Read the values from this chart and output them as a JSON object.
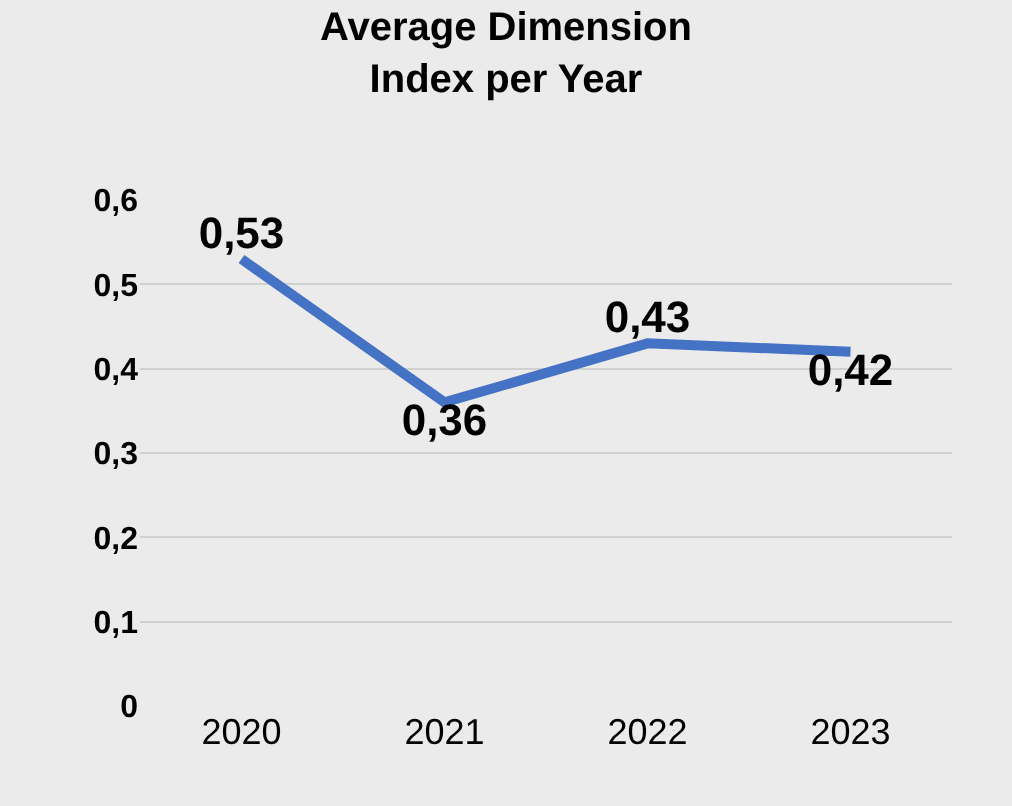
{
  "chart_data": {
    "type": "line",
    "title": "Average Dimension Index per Year",
    "categories": [
      "2020",
      "2021",
      "2022",
      "2023"
    ],
    "series": [
      {
        "color": "#4472c4",
        "values": [
          0.53,
          0.36,
          0.43,
          0.42
        ],
        "value_labels": [
          "0,53",
          "0,36",
          "0,43",
          "0,42"
        ]
      }
    ],
    "ylim": [
      0,
      0.6
    ],
    "yticks": [
      0,
      {
        "value": 0.1,
        "label": "0,1"
      },
      {
        "value": 0.2,
        "label": "0,2"
      },
      {
        "value": 0.3,
        "label": "0,3"
      },
      {
        "value": 0.4,
        "label": "0,4"
      },
      {
        "value": 0.5,
        "label": "0,5"
      },
      {
        "value": 0.6,
        "label": "0,6"
      }
    ],
    "grid": "y",
    "marker": "none",
    "line_style": "solid"
  }
}
